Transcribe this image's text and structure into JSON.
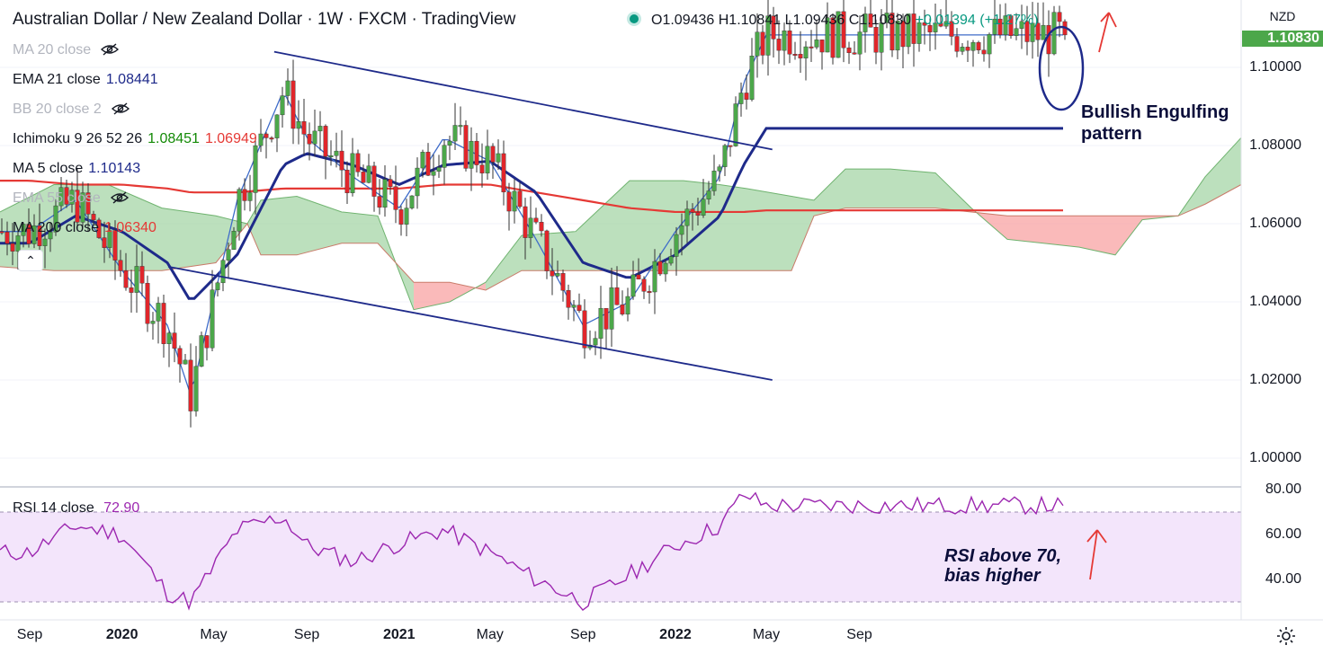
{
  "header": {
    "pair": "Australian Dollar / New Zealand Dollar",
    "interval": "1W",
    "source": "FXCM",
    "platform": "TradingView",
    "open": "O1.09436",
    "high": "H1.10841",
    "low": "L1.09436",
    "close": "C1.10830",
    "change": "+0.01394 (+1.27%)"
  },
  "legend": [
    {
      "label": "MA 20 close",
      "hidden": true
    },
    {
      "label": "EMA 21 close",
      "value": "1.08441",
      "color": "#1e2a8a"
    },
    {
      "label": "BB 20 close 2",
      "hidden": true
    },
    {
      "label": "Ichimoku 9 26 52 26",
      "value": "1.08451",
      "value2": "1.06949",
      "color": "#138a07",
      "color2": "#e53935"
    },
    {
      "label": "MA 5 close",
      "value": "1.10143",
      "color": "#1e2a8a"
    },
    {
      "label": "EMA 55 close",
      "hidden": true
    },
    {
      "label": "MA 200 close",
      "value": "1.06340",
      "color": "#e53935"
    }
  ],
  "axis": {
    "currency": "NZD",
    "current_price": "1.10830",
    "y_ticks": [
      "1.10000",
      "1.08000",
      "1.06000",
      "1.04000",
      "1.02000",
      "1.00000"
    ],
    "rsi_ticks": [
      "80.00",
      "60.00",
      "40.00"
    ],
    "x_ticks": [
      "Sep",
      "2020",
      "May",
      "Sep",
      "2021",
      "May",
      "Sep",
      "2022",
      "May",
      "Sep"
    ]
  },
  "rsi": {
    "label": "RSI 14 close",
    "value": "72.90"
  },
  "annotations": {
    "pattern_line1": "Bullish Engulfing",
    "pattern_line2": "pattern",
    "rsi_line1": "RSI above 70,",
    "rsi_line2": "bias higher"
  },
  "colors": {
    "up": "#4ca74a",
    "down": "#e0262b",
    "channel": "#1e2a8a",
    "ma200": "#e53935",
    "rsi": "#9c27b0",
    "rsi_band": "#f3e5fb"
  },
  "chart_data": {
    "type": "candlestick",
    "title": "Australian Dollar / New Zealand Dollar · 1W · FXCM",
    "y_range": [
      0.99,
      1.114
    ],
    "x_range": [
      "2019-08-26",
      "2022-05-23"
    ],
    "series": [
      {
        "name": "AUDNZD weekly close",
        "x": [
          "2019-09",
          "2019-11",
          "2020-01",
          "2020-03",
          "2020-04",
          "2020-06",
          "2020-08",
          "2020-09",
          "2020-11",
          "2021-01",
          "2021-03",
          "2021-05",
          "2021-07",
          "2021-09",
          "2021-11",
          "2022-01",
          "2022-03",
          "2022-04",
          "2022-05"
        ],
        "values": [
          1.058,
          1.066,
          1.048,
          1.034,
          1.016,
          1.066,
          1.094,
          1.082,
          1.072,
          1.064,
          1.082,
          1.076,
          1.056,
          1.034,
          1.04,
          1.058,
          1.072,
          1.096,
          1.1083
        ]
      },
      {
        "name": "EMA 21 close",
        "values": [
          1.055,
          1.062,
          1.058,
          1.05,
          1.04,
          1.052,
          1.075,
          1.078,
          1.075,
          1.07,
          1.075,
          1.076,
          1.068,
          1.05,
          1.046,
          1.052,
          1.062,
          1.075,
          1.0844
        ]
      },
      {
        "name": "MA 200 close",
        "values": [
          1.071,
          1.07,
          1.07,
          1.069,
          1.068,
          1.068,
          1.069,
          1.069,
          1.069,
          1.069,
          1.07,
          1.07,
          1.068,
          1.066,
          1.064,
          1.063,
          1.063,
          1.063,
          1.0634
        ]
      },
      {
        "name": "RSI 14 close",
        "values": [
          52,
          64,
          60,
          34,
          30,
          62,
          68,
          55,
          48,
          56,
          62,
          52,
          40,
          30,
          42,
          55,
          64,
          78,
          72.9
        ]
      }
    ],
    "channel": {
      "upper": [
        [
          "2020-07-20",
          1.104
        ],
        [
          "2022-05-09",
          1.079
        ]
      ],
      "lower": [
        [
          "2020-03-02",
          1.049
        ],
        [
          "2022-05-09",
          1.02
        ]
      ]
    }
  }
}
